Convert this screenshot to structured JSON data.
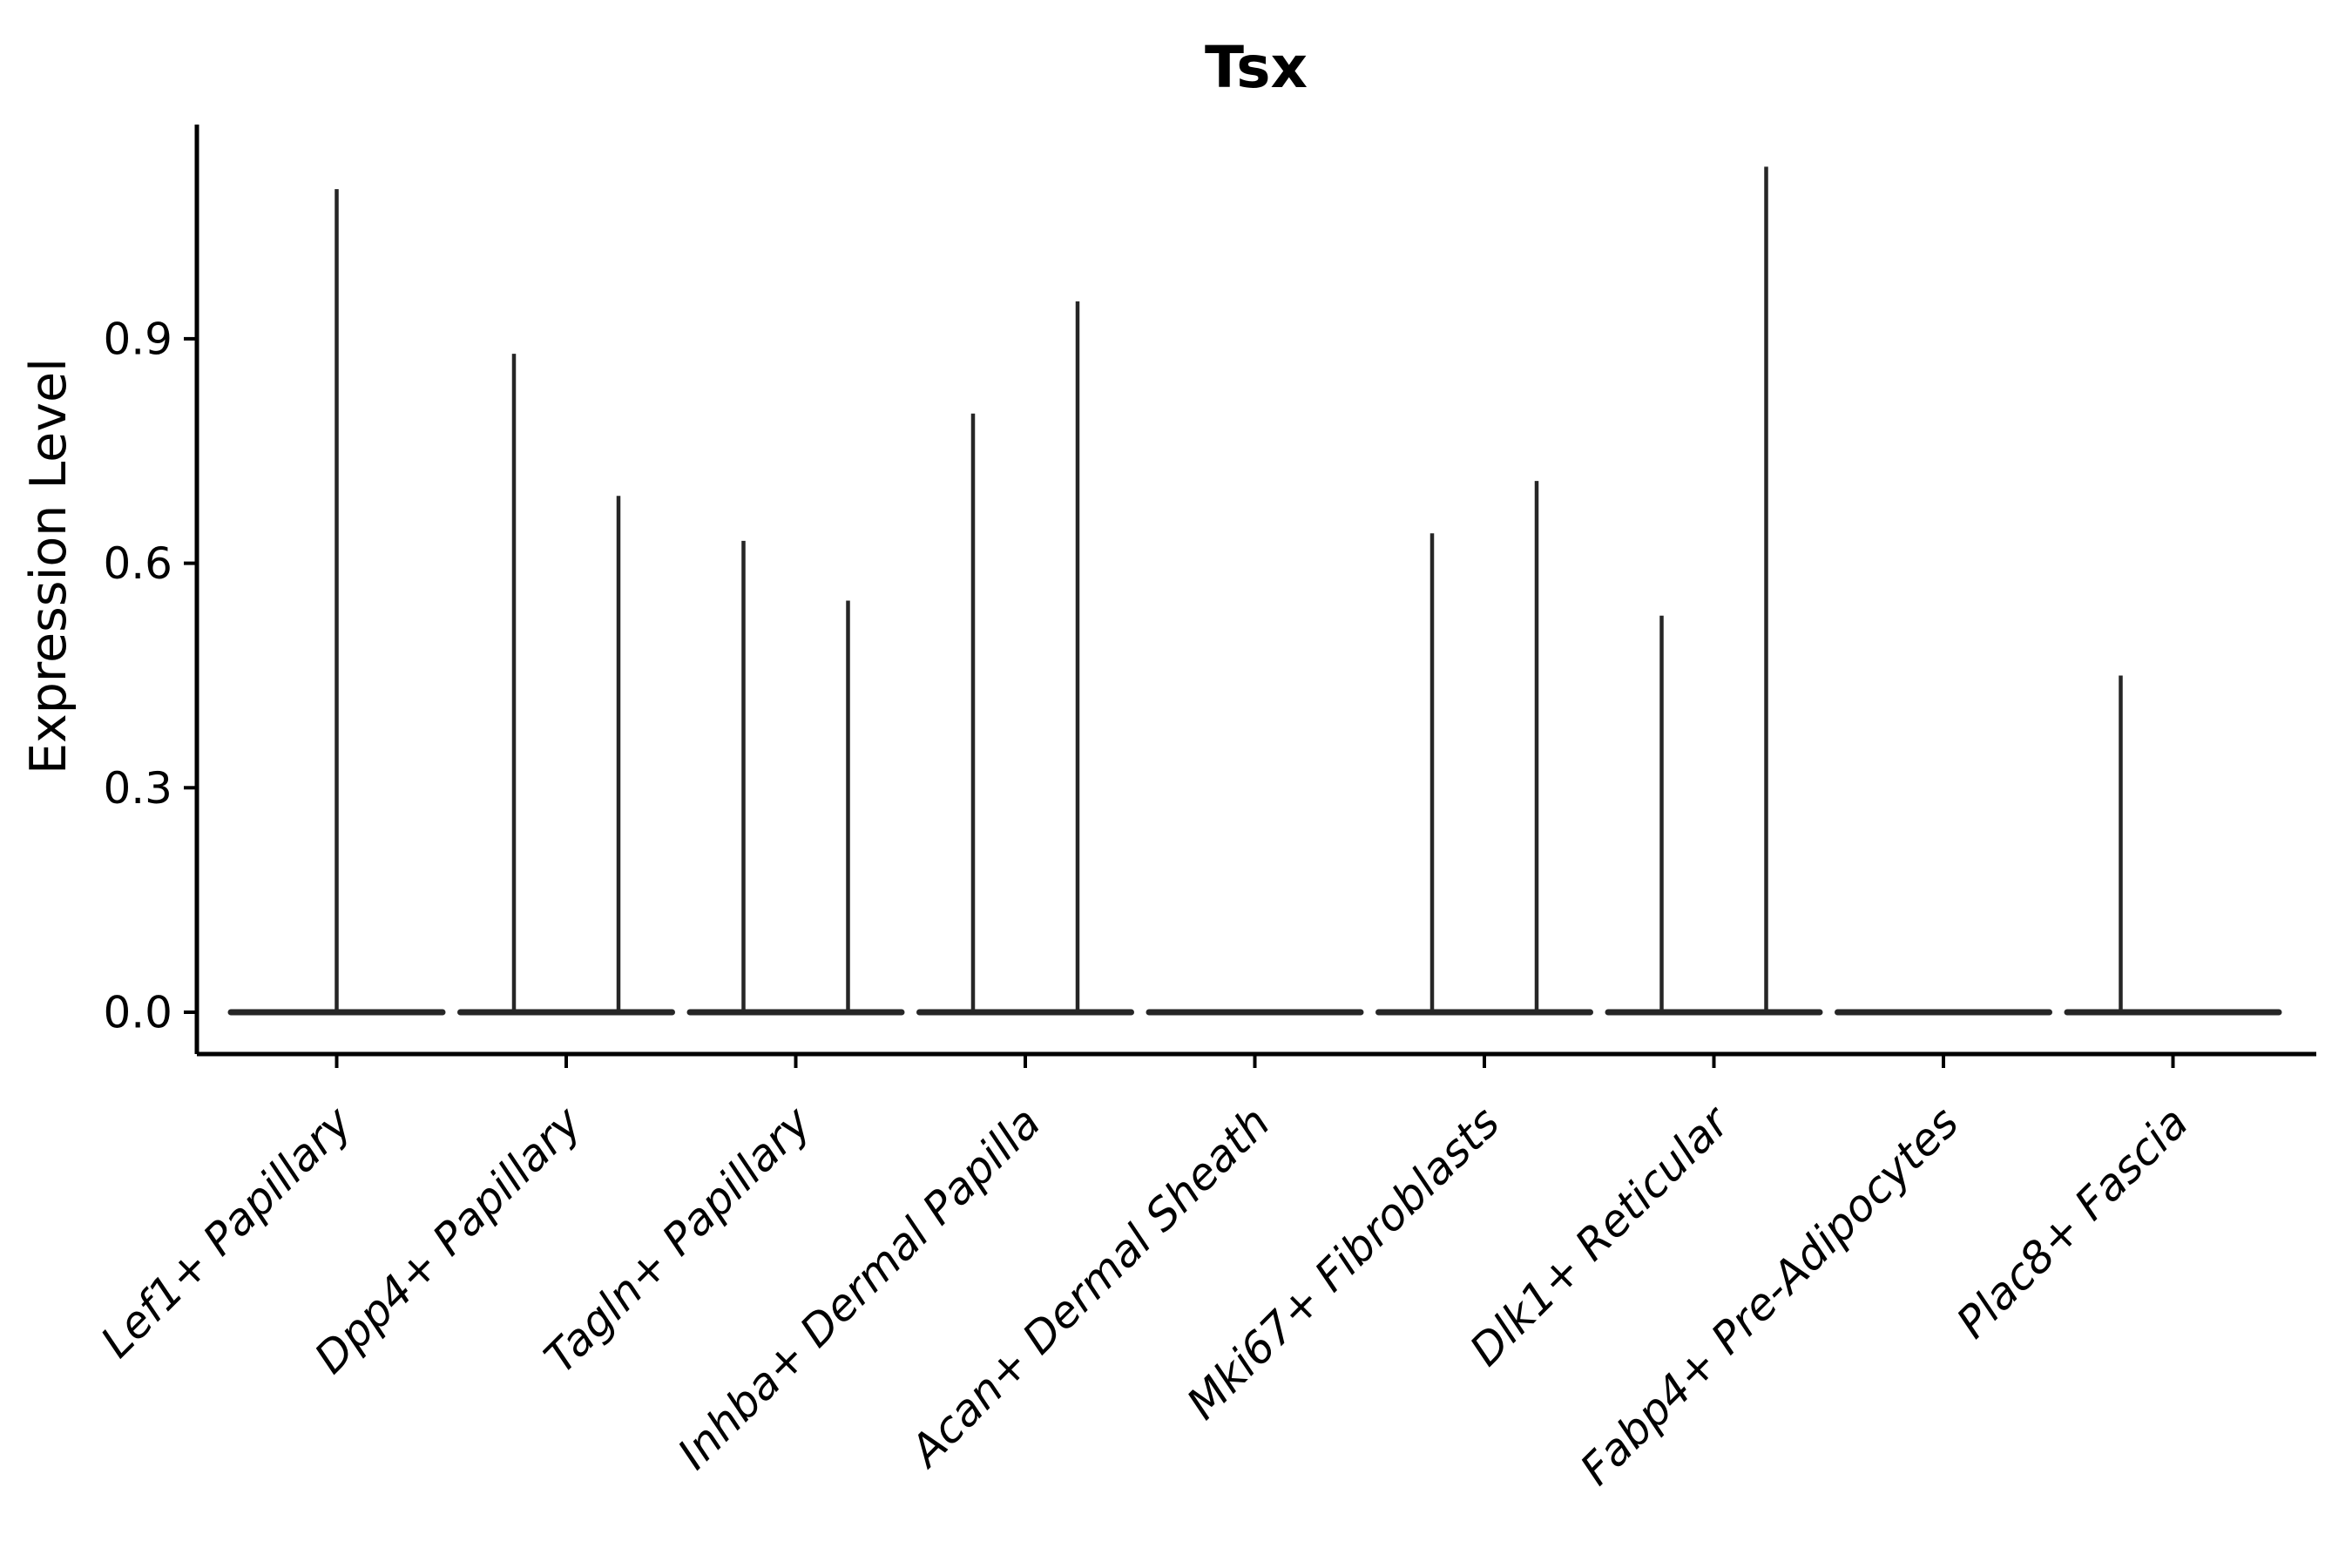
{
  "chart_data": {
    "type": "violin",
    "title": "Tsx",
    "ylabel": "Expression Level",
    "xlabel": "",
    "yticks": [
      {
        "value": 0.0,
        "label": "0.0"
      },
      {
        "value": 0.3,
        "label": "0.3"
      },
      {
        "value": 0.6,
        "label": "0.6"
      },
      {
        "value": 0.9,
        "label": "0.9"
      }
    ],
    "ylim": [
      -0.06,
      1.19
    ],
    "grid": false,
    "legend": false,
    "axis_color": "#000000",
    "stroke_color": "#262626",
    "categories": [
      "Lef1+ Papillary",
      "Dpp4+ Papillary",
      "Tagln+ Papillary",
      "Inhba+ Dermal Papilla",
      "Acan+ Dermal Sheath",
      "Mki67+ Fibroblasts",
      "Dlk1+ Reticular",
      "Fabp4+ Pre-Adipocytes",
      "Plac8+ Fascia"
    ],
    "violins": [
      {
        "category": "Lef1+ Papillary",
        "baseline_value": 0.0,
        "spikes": [
          {
            "pos": "center",
            "value": 1.1
          }
        ]
      },
      {
        "category": "Dpp4+ Papillary",
        "baseline_value": 0.0,
        "spikes": [
          {
            "pos": "left",
            "value": 0.88
          },
          {
            "pos": "right",
            "value": 0.69
          }
        ]
      },
      {
        "category": "Tagln+ Papillary",
        "baseline_value": 0.0,
        "spikes": [
          {
            "pos": "left",
            "value": 0.63
          },
          {
            "pos": "right",
            "value": 0.55
          }
        ]
      },
      {
        "category": "Inhba+ Dermal Papilla",
        "baseline_value": 0.0,
        "spikes": [
          {
            "pos": "left",
            "value": 0.8
          },
          {
            "pos": "right",
            "value": 0.95
          }
        ]
      },
      {
        "category": "Acan+ Dermal Sheath",
        "baseline_value": 0.0,
        "spikes": []
      },
      {
        "category": "Mki67+ Fibroblasts",
        "baseline_value": 0.0,
        "spikes": [
          {
            "pos": "left",
            "value": 0.64
          },
          {
            "pos": "right",
            "value": 0.71
          }
        ]
      },
      {
        "category": "Dlk1+ Reticular",
        "baseline_value": 0.0,
        "spikes": [
          {
            "pos": "left",
            "value": 0.53
          },
          {
            "pos": "right",
            "value": 1.13
          }
        ]
      },
      {
        "category": "Fabp4+ Pre-Adipocytes",
        "baseline_value": 0.0,
        "spikes": []
      },
      {
        "category": "Plac8+ Fascia",
        "baseline_value": 0.0,
        "spikes": [
          {
            "pos": "left",
            "value": 0.45
          }
        ]
      }
    ]
  }
}
